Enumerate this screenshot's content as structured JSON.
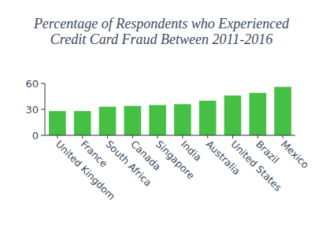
{
  "chart_data": {
    "type": "bar",
    "title": "Percentage of Respondents who Experienced Credit Card Fraud Between 2011-2016",
    "categories": [
      "United Kingdom",
      "France",
      "South Africa",
      "Canada",
      "Singapore",
      "India",
      "Australia",
      "United States",
      "Brazil",
      "Mexico"
    ],
    "values": [
      28,
      28,
      33,
      34,
      35,
      36,
      40,
      46,
      49,
      56
    ],
    "color": "#45c045",
    "ylim": [
      0,
      60
    ],
    "yticks": [
      0,
      30,
      60
    ],
    "grid": false
  }
}
